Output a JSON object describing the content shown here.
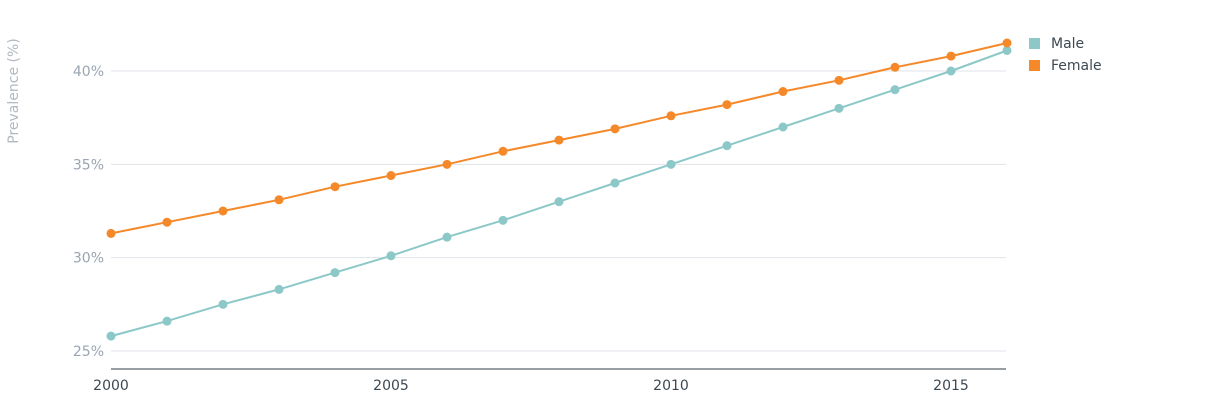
{
  "chart_data": {
    "type": "line",
    "title": "",
    "xlabel": "",
    "ylabel": "Prevalence (%)",
    "x": [
      2000,
      2001,
      2002,
      2003,
      2004,
      2005,
      2006,
      2007,
      2008,
      2009,
      2010,
      2011,
      2012,
      2013,
      2014,
      2015,
      2016
    ],
    "xlim": [
      2000,
      2016
    ],
    "ylim": [
      24,
      43
    ],
    "x_ticks": [
      2000,
      2005,
      2010,
      2015
    ],
    "x_tick_labels": [
      "2000",
      "2005",
      "2010",
      "2015"
    ],
    "y_ticks": [
      25,
      30,
      35,
      40
    ],
    "y_tick_labels": [
      "25%",
      "30%",
      "35%",
      "40%"
    ],
    "grid": "horizontal",
    "legend_position": "top-right",
    "series": [
      {
        "name": "Male",
        "color": "#8cc8c8",
        "values": [
          25.8,
          26.6,
          27.5,
          28.3,
          29.2,
          30.1,
          31.1,
          32.0,
          33.0,
          34.0,
          35.0,
          36.0,
          37.0,
          38.0,
          39.0,
          40.0,
          41.1
        ]
      },
      {
        "name": "Female",
        "color": "#f5892a",
        "values": [
          31.3,
          31.9,
          32.5,
          33.1,
          33.8,
          34.4,
          35.0,
          35.7,
          36.3,
          36.9,
          37.6,
          38.2,
          38.9,
          39.5,
          40.2,
          40.8,
          41.5
        ]
      }
    ]
  }
}
